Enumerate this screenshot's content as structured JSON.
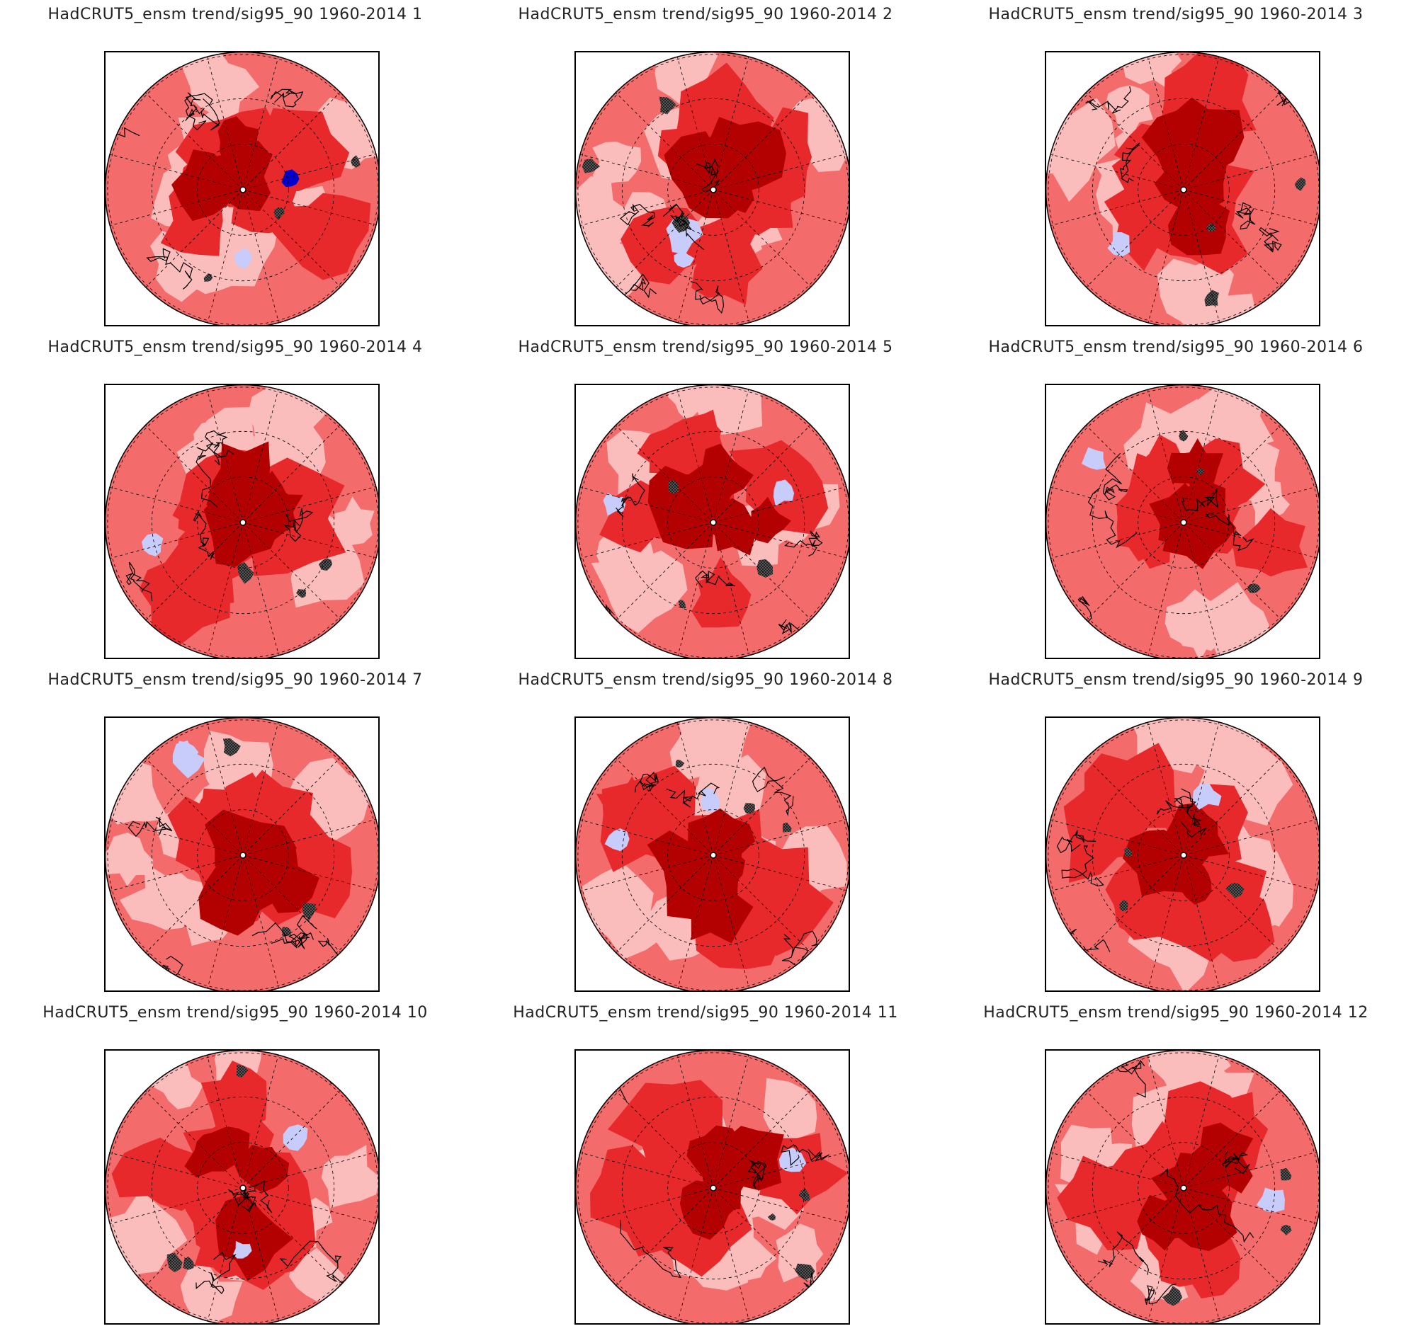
{
  "dataset": "HadCRUT5_ensm",
  "period": "1960-2014",
  "colors": {
    "dark_red": "#b30000",
    "red": "#e8292c",
    "medium_red": "#f46b6b",
    "light_red": "#fbbcbc",
    "light_blue": "#c8ccfb",
    "blue": "#0000d0",
    "stipple": "#111111",
    "coastline": "#000000",
    "gridline": "#000000"
  },
  "panels": [
    {
      "title": "HadCRUT5_ensm trend/sig95_90 1960-2014 1"
    },
    {
      "title": "HadCRUT5_ensm trend/sig95_90 1960-2014 2"
    },
    {
      "title": "HadCRUT5_ensm trend/sig95_90 1960-2014 3"
    },
    {
      "title": "HadCRUT5_ensm trend/sig95_90 1960-2014 4"
    },
    {
      "title": "HadCRUT5_ensm trend/sig95_90 1960-2014 5"
    },
    {
      "title": "HadCRUT5_ensm trend/sig95_90 1960-2014 6"
    },
    {
      "title": "HadCRUT5_ensm trend/sig95_90 1960-2014 7"
    },
    {
      "title": "HadCRUT5_ensm trend/sig95_90 1960-2014 8"
    },
    {
      "title": "HadCRUT5_ensm trend/sig95_90 1960-2014 9"
    },
    {
      "title": "HadCRUT5_ensm trend/sig95_90 1960-2014 10"
    },
    {
      "title": "HadCRUT5_ensm trend/sig95_90 1960-2014 11"
    },
    {
      "title": "HadCRUT5_ensm trend/sig95_90 1960-2014 12"
    }
  ]
}
